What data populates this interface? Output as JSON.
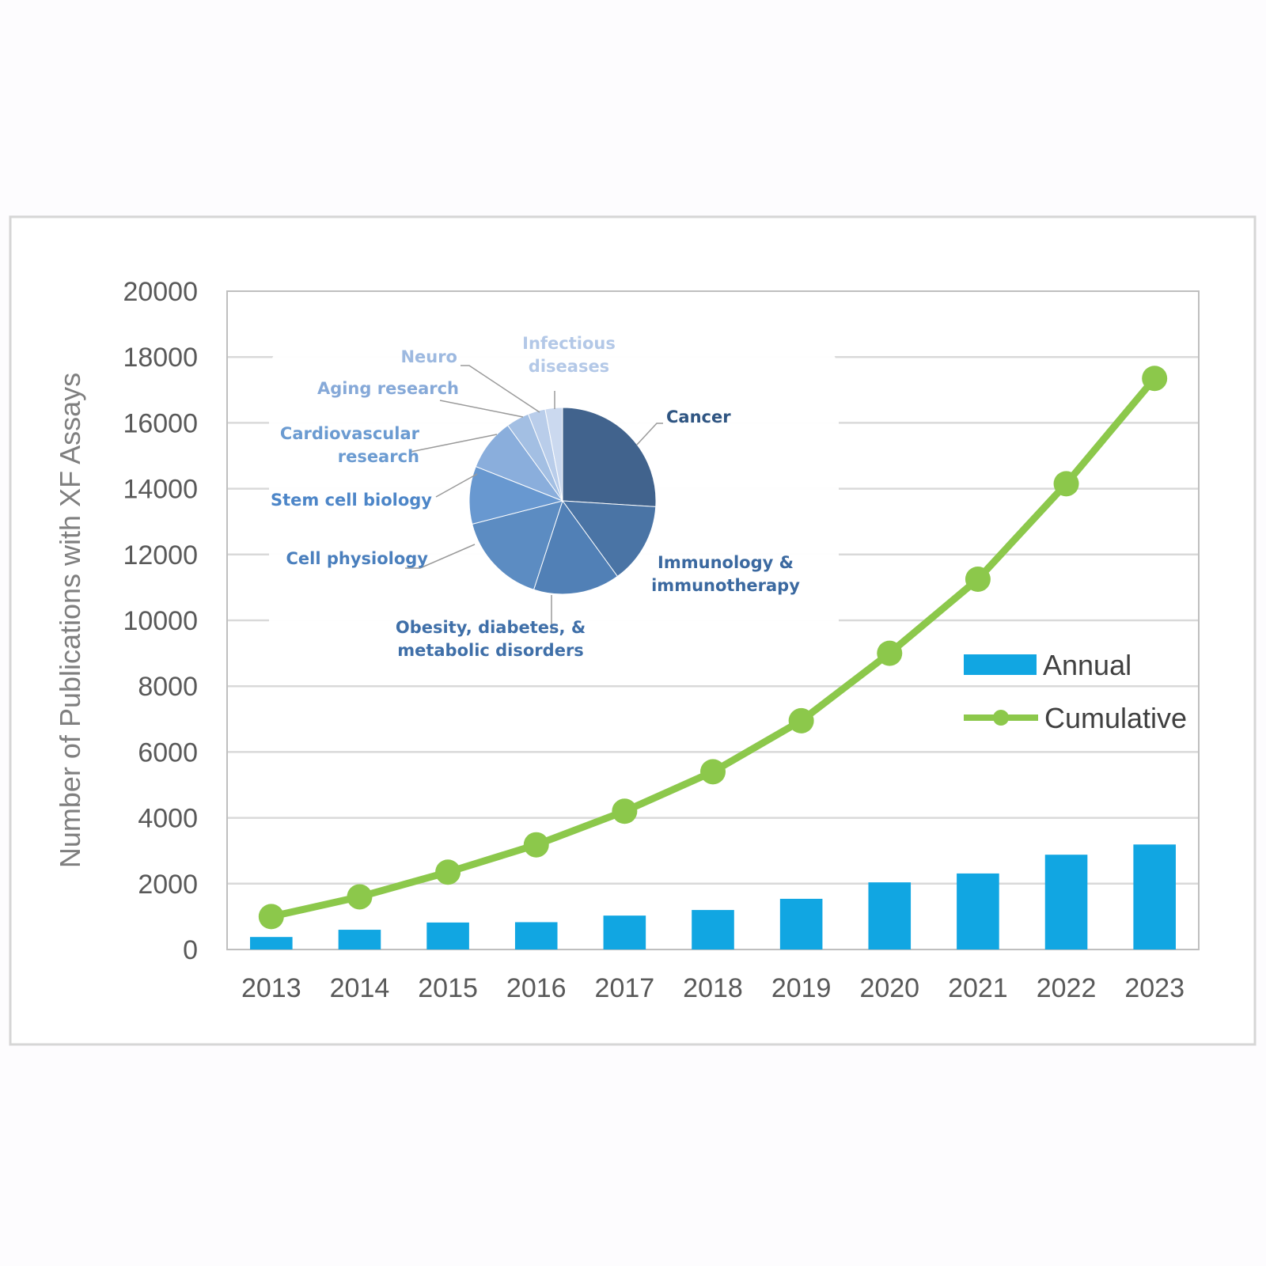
{
  "chart_data": [
    {
      "type": "bar+line",
      "categories": [
        "2013",
        "2014",
        "2015",
        "2016",
        "2017",
        "2018",
        "2019",
        "2020",
        "2021",
        "2022",
        "2023"
      ],
      "series": [
        {
          "name": "Annual",
          "type": "bar",
          "color": "#11a6e2",
          "values": [
            380,
            600,
            820,
            830,
            1030,
            1200,
            1540,
            2040,
            2310,
            2880,
            3190
          ]
        },
        {
          "name": "Cumulative",
          "type": "line",
          "color": "#8cc84b",
          "values": [
            1000,
            1600,
            2350,
            3180,
            4200,
            5400,
            6950,
            9000,
            11250,
            14150,
            17350
          ]
        }
      ],
      "ylabel": "Number of Publications with XF Assays",
      "xlabel": "",
      "ylim": [
        0,
        20000
      ],
      "yticks": [
        "0",
        "2000",
        "4000",
        "6000",
        "8000",
        "10000",
        "12000",
        "14000",
        "16000",
        "18000",
        "20000"
      ],
      "grid": true,
      "legend_position": "right"
    },
    {
      "type": "pie",
      "slices": [
        {
          "label": "Cancer",
          "value": 26,
          "color": "#41638d",
          "label_color": "#2f5582"
        },
        {
          "label": "Immunology & immunotherapy",
          "value": 14,
          "color": "#4a74a5",
          "label_color": "#3b69a0"
        },
        {
          "label": "Obesity, diabetes, & metabolic disorders",
          "value": 15,
          "color": "#5180b6",
          "label_color": "#3f6fa8"
        },
        {
          "label": "Cell physiology",
          "value": 16,
          "color": "#5c8cc2",
          "label_color": "#4a7fbd"
        },
        {
          "label": "Stem cell biology",
          "value": 10,
          "color": "#6898d0",
          "label_color": "#4d86c8"
        },
        {
          "label": "Cardiovascular research",
          "value": 9,
          "color": "#8aaedc",
          "label_color": "#6b9bd1"
        },
        {
          "label": "Aging research",
          "value": 4,
          "color": "#a3bfe3",
          "label_color": "#86a9d8"
        },
        {
          "label": "Neuro",
          "value": 3,
          "color": "#b9cdea",
          "label_color": "#9db9e0"
        },
        {
          "label": "Infectious diseases",
          "value": 3,
          "color": "#cbd9ef",
          "label_color": "#b3c8e7"
        }
      ]
    }
  ],
  "pie_labels": {
    "cancer": "Cancer",
    "immuno_1": "Immunology &",
    "immuno_2": "immunotherapy",
    "obesity_1": "Obesity, diabetes, &",
    "obesity_2": "metabolic disorders",
    "cellphys": "Cell physiology",
    "stemcell": "Stem cell biology",
    "cardio_1": "Cardiovascular",
    "cardio_2": "research",
    "aging": "Aging research",
    "neuro": "Neuro",
    "infect_1": "Infectious",
    "infect_2": "diseases"
  },
  "legend": {
    "annual": "Annual",
    "cumulative": "Cumulative"
  }
}
